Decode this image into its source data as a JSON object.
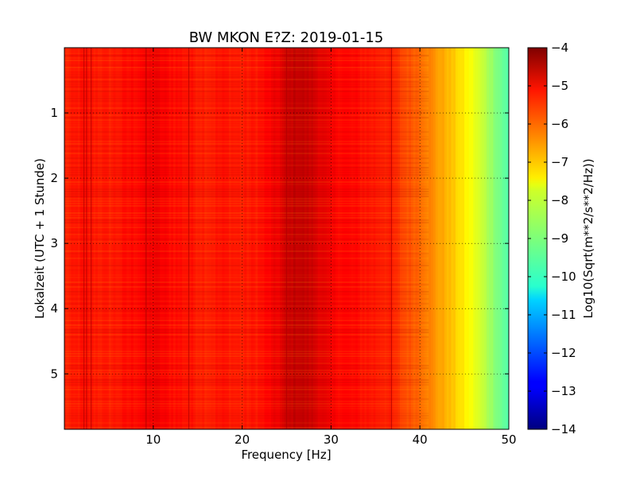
{
  "chart_data": {
    "type": "heatmap",
    "title": "BW MKON E?Z: 2019-01-15",
    "xlabel": "Frequency [Hz]",
    "ylabel": "Lokalzeit (UTC + 1 Stunde)",
    "xlim": [
      0,
      50
    ],
    "ylim": [
      5.85,
      0
    ],
    "x_ticks": [
      10,
      20,
      30,
      40,
      50
    ],
    "y_ticks": [
      1,
      2,
      3,
      4,
      5
    ],
    "grid": true,
    "colormap": "jet",
    "colorbar": {
      "label": "Log10(Sqrt(m**2/s**2/Hz))",
      "range": [
        -14,
        -4
      ],
      "ticks": [
        -4,
        -5,
        -6,
        -7,
        -8,
        -9,
        -10,
        -11,
        -12,
        -13,
        -14
      ]
    },
    "spectrum_profile": {
      "frequency_hz": [
        0,
        2,
        5,
        8,
        10,
        12,
        14,
        16,
        18,
        20,
        22,
        24,
        25,
        26,
        27,
        28,
        29,
        30,
        32,
        34,
        36,
        37,
        38,
        40,
        41,
        42,
        43,
        44,
        45,
        46,
        47,
        48,
        49,
        50
      ],
      "log10_amplitude": [
        -5.6,
        -5.4,
        -5.5,
        -5.3,
        -5.1,
        -5.3,
        -5.4,
        -5.5,
        -5.4,
        -5.5,
        -5.4,
        -5.1,
        -4.8,
        -4.65,
        -4.7,
        -4.8,
        -5.0,
        -5.2,
        -5.3,
        -5.4,
        -5.5,
        -5.6,
        -5.9,
        -6.2,
        -6.5,
        -6.8,
        -7.0,
        -7.3,
        -7.6,
        -7.9,
        -8.3,
        -8.7,
        -9.1,
        -9.5
      ]
    }
  }
}
